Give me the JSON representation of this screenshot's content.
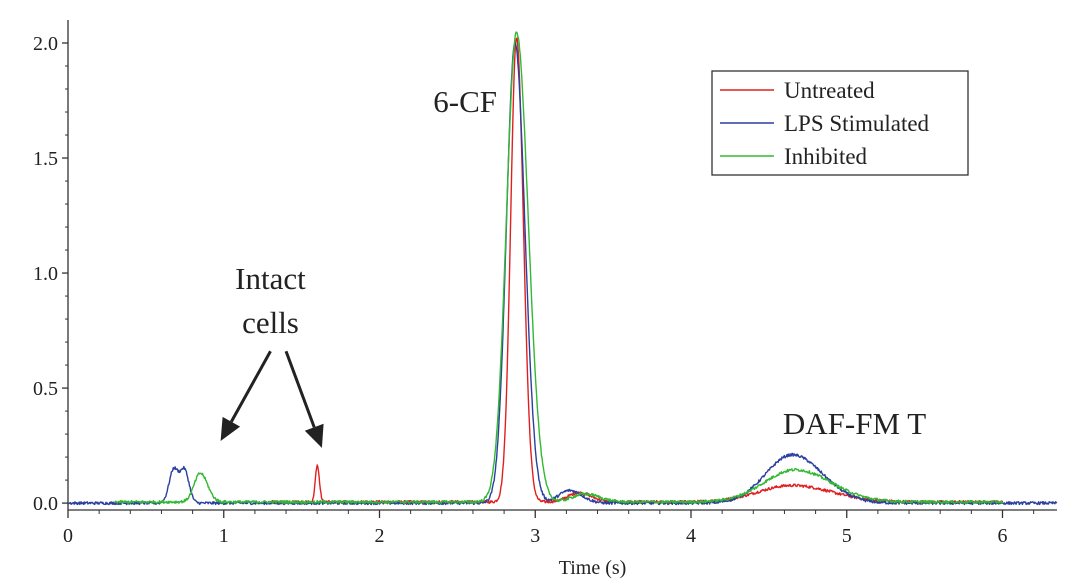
{
  "chart_data": {
    "type": "line",
    "xlabel": "Time (s)",
    "ylabel": "",
    "xlim": [
      0,
      6.35
    ],
    "ylim": [
      -0.03,
      2.1
    ],
    "x_ticks": [
      0,
      1,
      2,
      3,
      4,
      5,
      6
    ],
    "y_ticks": [
      0.0,
      0.5,
      1.0,
      1.5,
      2.0
    ],
    "x_tick_labels": [
      "0",
      "1",
      "2",
      "3",
      "4",
      "5",
      "6"
    ],
    "y_tick_labels": [
      "0.0",
      "0.5",
      "1.0",
      "1.5",
      "2.0"
    ],
    "legend_position": "top-right",
    "series": [
      {
        "name": "Untreated",
        "color": "#e02020",
        "x_range": [
          1.3,
          6.0
        ],
        "baseline": 0.005,
        "peaks": [
          {
            "center": 1.6,
            "height": 0.16,
            "width": 0.012
          },
          {
            "center": 2.88,
            "height": 2.02,
            "width": 0.038
          },
          {
            "center": 3.28,
            "height": 0.04,
            "width": 0.07
          },
          {
            "center": 4.65,
            "height": 0.072,
            "width": 0.22
          }
        ]
      },
      {
        "name": "LPS Stimulated",
        "color": "#2a3f9e",
        "x_range": [
          0.0,
          6.35
        ],
        "baseline": 0.0,
        "peaks": [
          {
            "center": 0.68,
            "height": 0.15,
            "width": 0.03
          },
          {
            "center": 0.75,
            "height": 0.13,
            "width": 0.025
          },
          {
            "center": 2.87,
            "height": 2.0,
            "width": 0.055
          },
          {
            "center": 3.22,
            "height": 0.055,
            "width": 0.07
          },
          {
            "center": 4.65,
            "height": 0.21,
            "width": 0.17
          }
        ]
      },
      {
        "name": "Inhibited",
        "color": "#33b833",
        "x_range": [
          0.3,
          6.0
        ],
        "baseline": 0.005,
        "peaks": [
          {
            "center": 0.85,
            "height": 0.125,
            "width": 0.04
          },
          {
            "center": 2.88,
            "height": 2.04,
            "width": 0.065
          },
          {
            "center": 3.32,
            "height": 0.035,
            "width": 0.08
          },
          {
            "center": 4.67,
            "height": 0.14,
            "width": 0.2
          }
        ]
      }
    ],
    "annotations": [
      {
        "text": "6-CF",
        "x": 2.55,
        "y": 1.7
      },
      {
        "text": "Intact",
        "x": 1.3,
        "y": 0.93
      },
      {
        "text": "cells",
        "x": 1.3,
        "y": 0.74
      },
      {
        "text": "DAF-FM T",
        "x": 5.05,
        "y": 0.3
      }
    ],
    "arrows": [
      {
        "from": [
          1.3,
          0.66
        ],
        "to": [
          0.98,
          0.27
        ]
      },
      {
        "from": [
          1.4,
          0.66
        ],
        "to": [
          1.63,
          0.24
        ]
      }
    ]
  }
}
